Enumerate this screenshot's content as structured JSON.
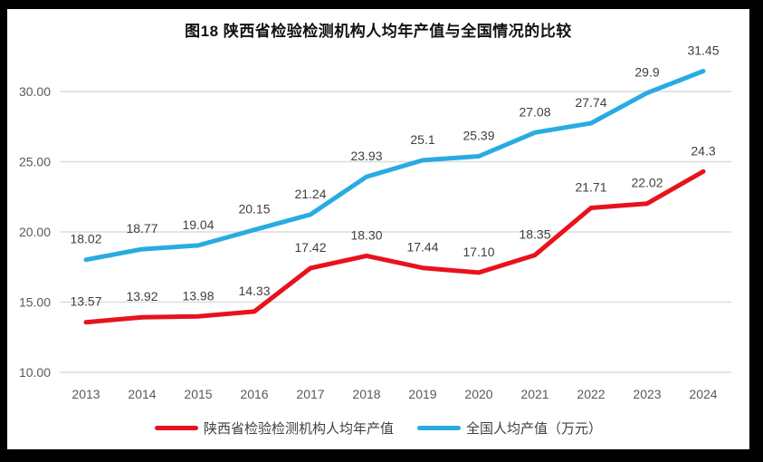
{
  "title": "图18 陕西省检验检测机构人均年产值与全国情况的比较",
  "chart_data": {
    "type": "line",
    "x": [
      "2013",
      "2014",
      "2015",
      "2016",
      "2017",
      "2018",
      "2019",
      "2020",
      "2021",
      "2022",
      "2023",
      "2024"
    ],
    "series": [
      {
        "name": "陕西省检验检测机构人均年产值",
        "color": "#e8121d",
        "values": [
          13.57,
          13.92,
          13.98,
          14.33,
          17.42,
          18.3,
          17.44,
          17.1,
          18.35,
          21.71,
          22.02,
          24.3
        ],
        "point_labels": [
          "13.57",
          "13.92",
          "13.98",
          "14.33",
          "17.42",
          "18.30",
          "17.44",
          "17.10",
          "18.35",
          "21.71",
          "22.02",
          "24.3"
        ]
      },
      {
        "name": "全国人均产值（万元）",
        "color": "#29abe2",
        "values": [
          18.02,
          18.77,
          19.04,
          20.15,
          21.24,
          23.93,
          25.1,
          25.39,
          27.08,
          27.74,
          29.9,
          31.45
        ],
        "point_labels": [
          "18.02",
          "18.77",
          "19.04",
          "20.15",
          "21.24",
          "23.93",
          "25.1",
          "25.39",
          "27.08",
          "27.74",
          "29.9",
          "31.45"
        ]
      }
    ],
    "yticks": [
      {
        "value": 10,
        "label": "10.00"
      },
      {
        "value": 15,
        "label": "15.00"
      },
      {
        "value": 20,
        "label": "20.00"
      },
      {
        "value": 25,
        "label": "25.00"
      },
      {
        "value": 30,
        "label": "30.00"
      }
    ],
    "ylim": [
      10,
      32
    ],
    "grid": true,
    "legend_position": "bottom",
    "colors": {
      "grid": "#dcdcdc",
      "tick_text": "#595959",
      "point_label_text": "#3f3f3f",
      "background": "#ffffff",
      "frame": "#000000"
    }
  }
}
